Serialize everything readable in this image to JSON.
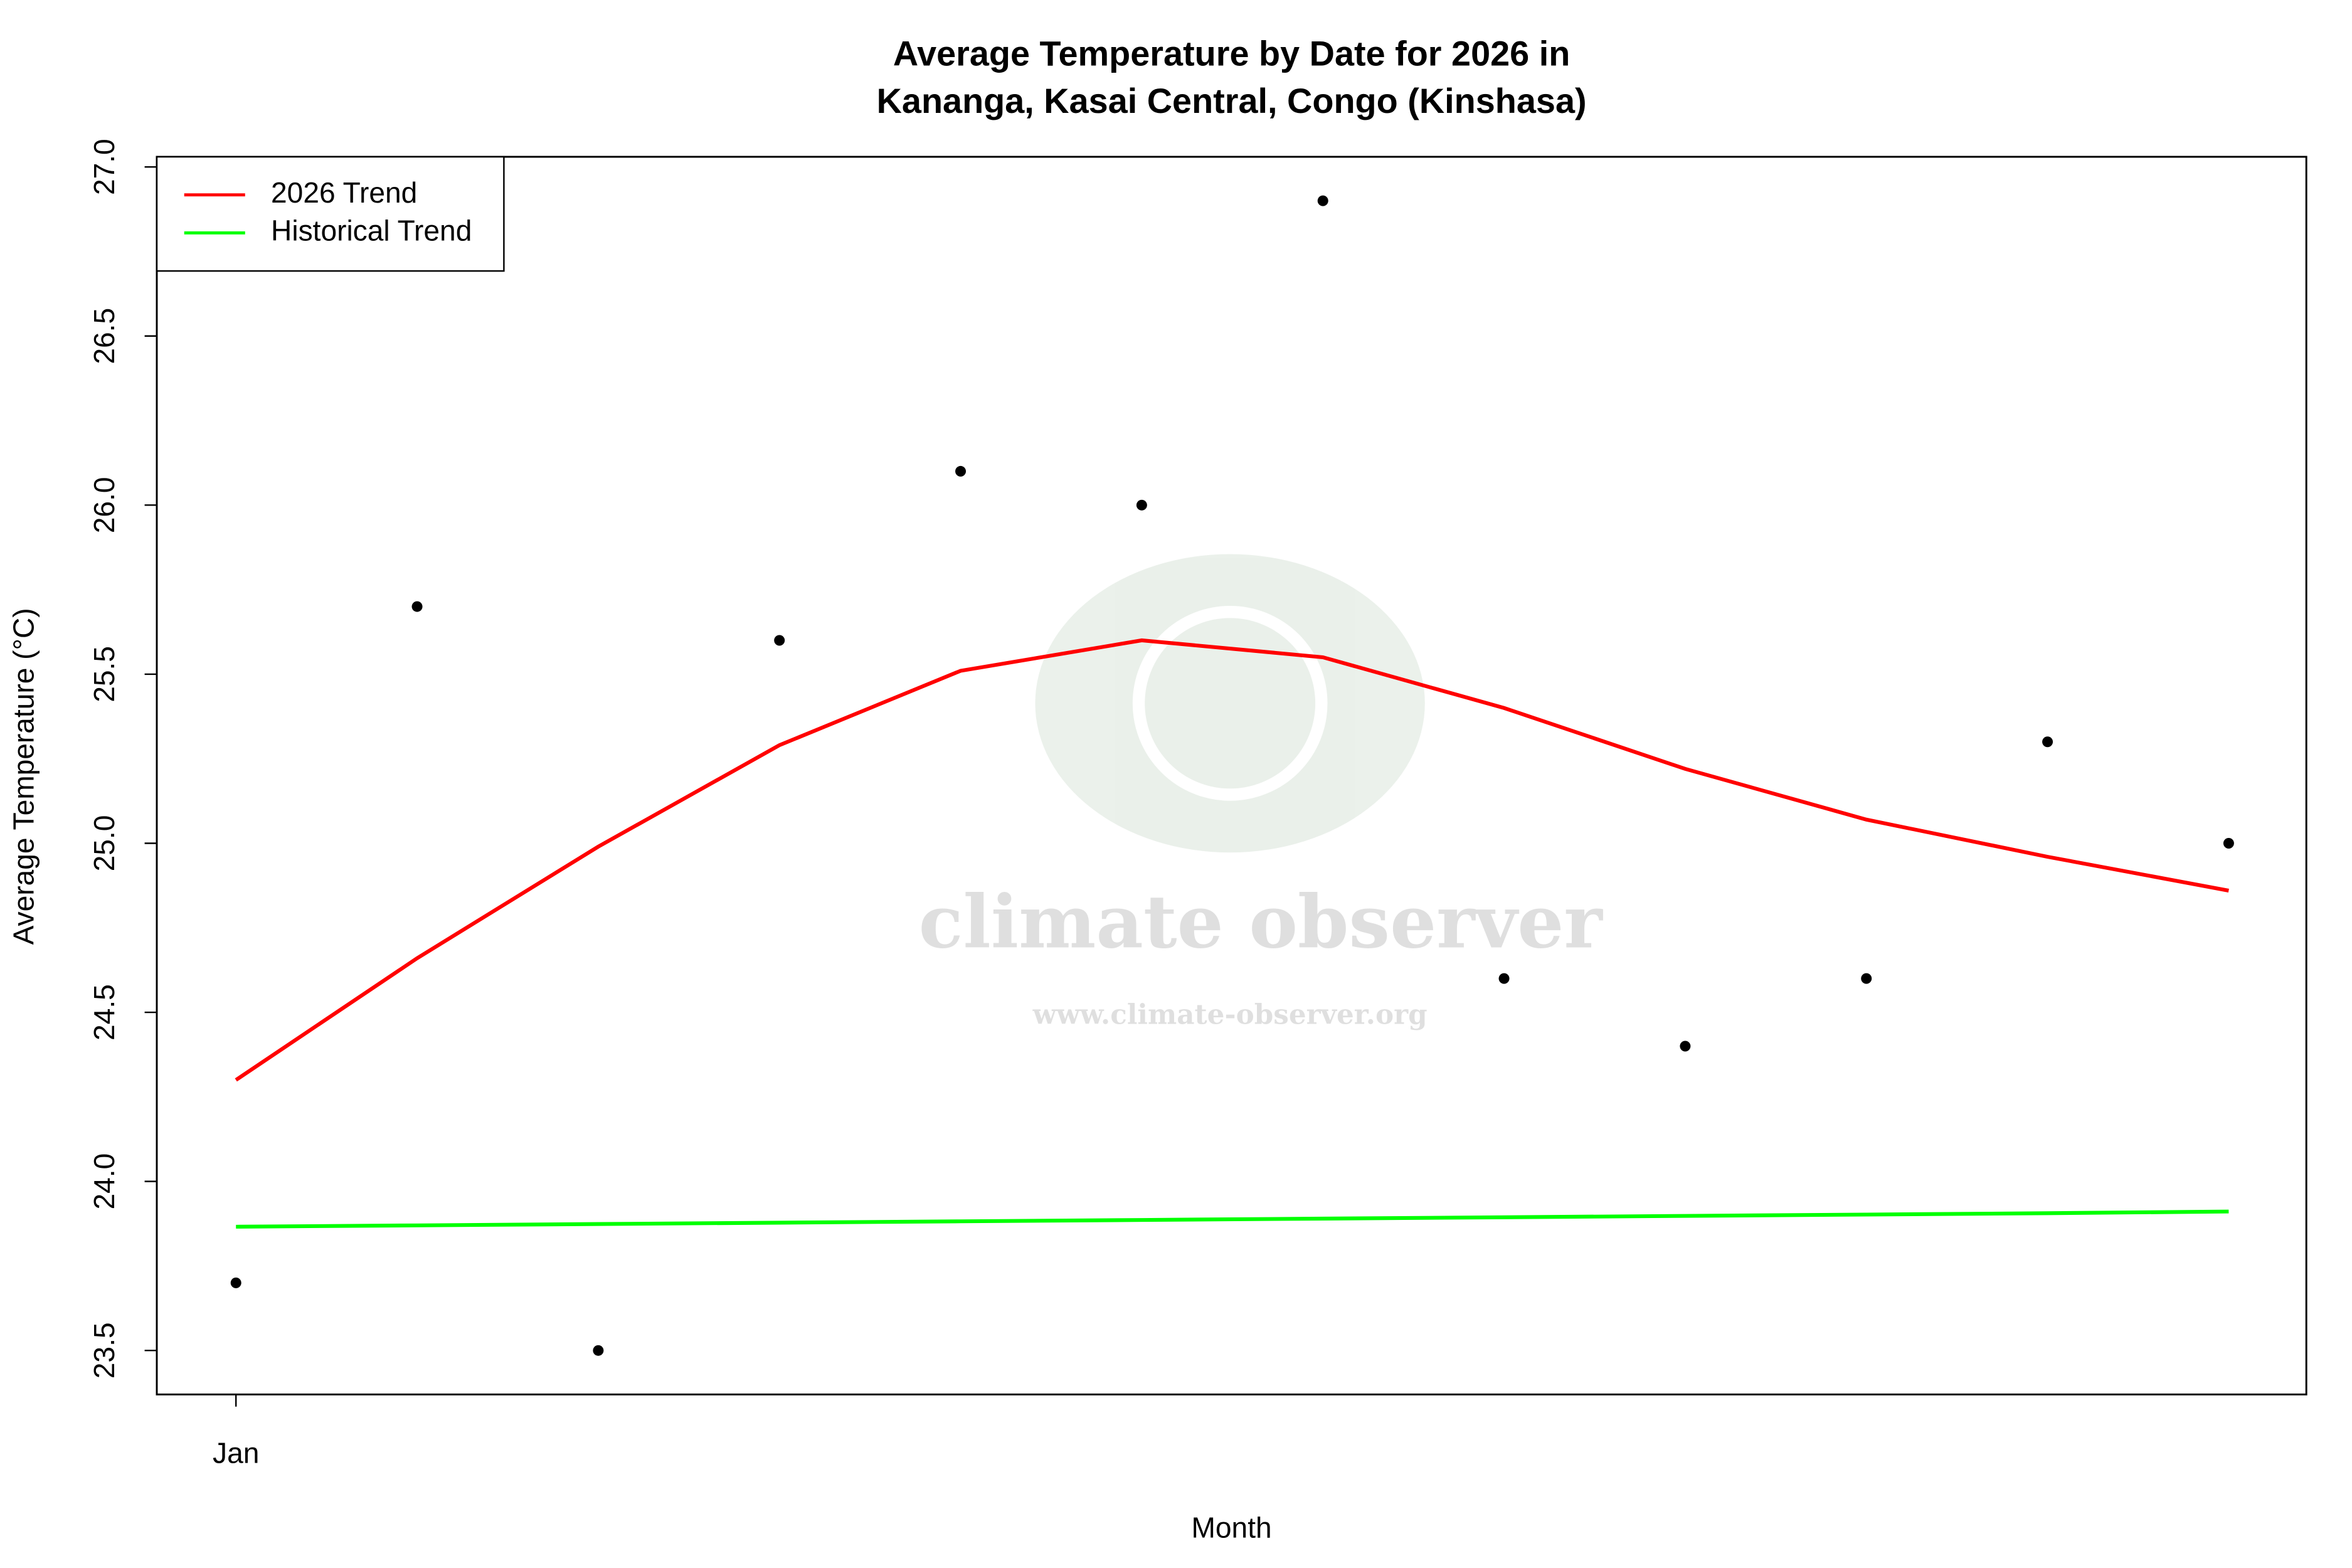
{
  "chart_data": {
    "type": "line",
    "title": "Average Temperature by Date for 2026 in",
    "subtitle": "Kananga, Kasai Central, Congo (Kinshasa)",
    "x_label": "Month",
    "y_label": "Average Temperature (°C)",
    "watermark": "climate observer",
    "watermark_url": "www.climate-observer.org",
    "categories": [
      "Jan",
      null,
      null,
      null,
      null,
      null,
      null,
      null,
      null,
      null,
      null,
      null
    ],
    "points": {
      "color": "#000000",
      "values": [
        23.7,
        25.7,
        23.5,
        25.6,
        26.1,
        26.0,
        26.9,
        24.6,
        24.4,
        24.6,
        25.3,
        25.0
      ]
    },
    "series": [
      {
        "name": "2026 Trend",
        "color": "#ff0000",
        "values": [
          24.3,
          24.66,
          24.99,
          25.29,
          25.51,
          25.6,
          25.55,
          25.4,
          25.22,
          25.07,
          24.96,
          24.86
        ]
      },
      {
        "name": "Historical Trend",
        "color": "#00ff00",
        "values": [
          23.866,
          23.87,
          23.874,
          23.878,
          23.882,
          23.886,
          23.89,
          23.894,
          23.898,
          23.902,
          23.906,
          23.911
        ]
      }
    ],
    "ylim": [
      23.37,
      27.03
    ],
    "yticks": [
      {
        "value": 23.5,
        "label": "23.5"
      },
      {
        "value": 24,
        "label": "24.0"
      },
      {
        "value": 24.5,
        "label": "24.5"
      },
      {
        "value": 25,
        "label": "25.0"
      },
      {
        "value": 25.5,
        "label": "25.5"
      },
      {
        "value": 26,
        "label": "26.0"
      },
      {
        "value": 26.5,
        "label": "26.5"
      },
      {
        "value": 27,
        "label": "27.0"
      }
    ],
    "legend": "top-left"
  }
}
